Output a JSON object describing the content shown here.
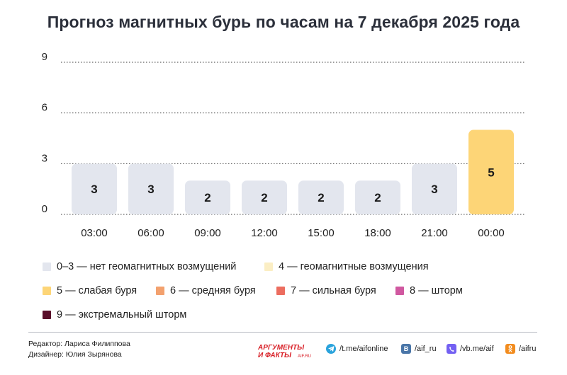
{
  "title": "Прогноз магнитных бурь по часам на 7 декабря 2025 года",
  "chart_data": {
    "type": "bar",
    "categories": [
      "03:00",
      "06:00",
      "09:00",
      "12:00",
      "15:00",
      "18:00",
      "21:00",
      "00:00"
    ],
    "values": [
      3,
      3,
      2,
      2,
      2,
      2,
      3,
      5
    ],
    "y_ticks": [
      "0",
      "3",
      "6",
      "9"
    ],
    "ylim": [
      0,
      9
    ],
    "grid": "dotted horizontal",
    "bar_colors": {
      "quiet": "#e3e6ee",
      "weak_storm": "#fdd577"
    }
  },
  "legend": [
    {
      "label": "0–3 — нет геомагнитных возмущений",
      "color": "#e3e6ee"
    },
    {
      "label": "4 — геомагнитные возмущения",
      "color": "#fbeec4"
    },
    {
      "label": "5 — слабая буря",
      "color": "#fdd577"
    },
    {
      "label": "6 — средняя буря",
      "color": "#f3a16e"
    },
    {
      "label": "7 — сильная буря",
      "color": "#ec6d5f"
    },
    {
      "label": "8 — шторм",
      "color": "#d058a0"
    },
    {
      "label": "9 — экстремальный шторм",
      "color": "#5a0f2a"
    }
  ],
  "footer": {
    "editor": "Редактор: Лариса Филиппова",
    "designer": "Дизайнер: Юлия Зырянова",
    "brand_line1": "АРГУМЕНТЫ",
    "brand_line2": "И ФАКТЫ",
    "brand_site": "AIF.RU",
    "socials": [
      {
        "icon": "telegram-icon",
        "label": "/t.me/aifonline",
        "color": "#2aa3dc"
      },
      {
        "icon": "vk-icon",
        "label": "/aif_ru",
        "color": "#4a76a8"
      },
      {
        "icon": "viber-icon",
        "label": "/vb.me/aif",
        "color": "#7360f2"
      },
      {
        "icon": "odnoklassniki-icon",
        "label": "/aifru",
        "color": "#f28c1e"
      }
    ]
  }
}
